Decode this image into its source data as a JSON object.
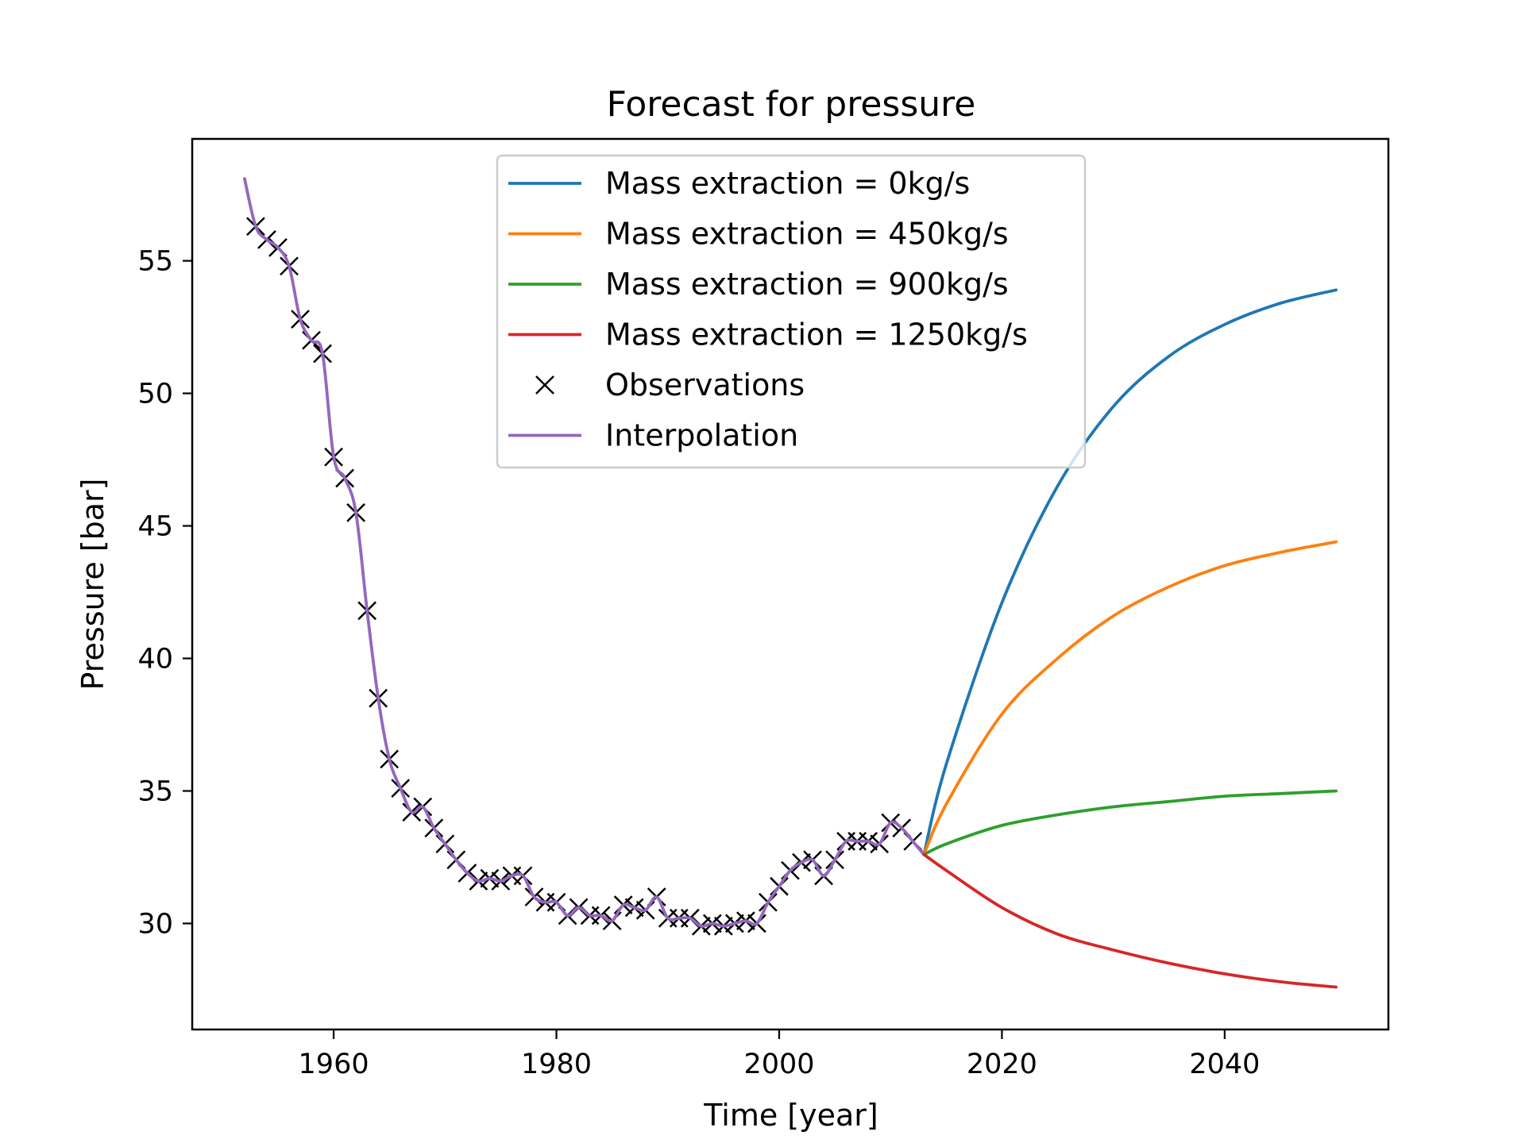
{
  "chart_data": {
    "type": "line",
    "title": "Forecast for pressure",
    "xlabel": "Time [year]",
    "ylabel": "Pressure [bar]",
    "xlim": [
      1947.3,
      2054.7
    ],
    "ylim": [
      26.0,
      59.6
    ],
    "xticks": [
      1960,
      1980,
      2000,
      2020,
      2040
    ],
    "yticks": [
      30,
      35,
      40,
      45,
      50,
      55
    ],
    "grid": false,
    "legend_position": "upper center",
    "colors": {
      "blue": "#1f77b4",
      "orange": "#ff7f0e",
      "green": "#2ca02c",
      "red": "#d62728",
      "purple": "#9467bd",
      "black": "#000000"
    },
    "legend": [
      {
        "label": "Mass extraction = 0kg/s",
        "kind": "line",
        "color": "#1f77b4"
      },
      {
        "label": "Mass extraction = 450kg/s",
        "kind": "line",
        "color": "#ff7f0e"
      },
      {
        "label": "Mass extraction = 900kg/s",
        "kind": "line",
        "color": "#2ca02c"
      },
      {
        "label": "Mass extraction = 1250kg/s",
        "kind": "line",
        "color": "#d62728"
      },
      {
        "label": "Observations",
        "kind": "marker",
        "color": "#000000"
      },
      {
        "label": "Interpolation",
        "kind": "line",
        "color": "#9467bd"
      }
    ],
    "observations": {
      "name": "Observations",
      "x": [
        1953,
        1954,
        1955,
        1956,
        1957,
        1958,
        1959,
        1960,
        1961,
        1962,
        1963,
        1964,
        1965,
        1966,
        1967,
        1968,
        1969,
        1970,
        1971,
        1972,
        1973,
        1974,
        1975,
        1976,
        1977,
        1978,
        1979,
        1980,
        1981,
        1982,
        1983,
        1984,
        1985,
        1986,
        1987,
        1988,
        1989,
        1990,
        1991,
        1992,
        1993,
        1994,
        1995,
        1996,
        1997,
        1998,
        1999,
        2000,
        2001,
        2002,
        2003,
        2004,
        2005,
        2006,
        2007,
        2008,
        2009,
        2010,
        2011,
        2012
      ],
      "y": [
        56.3,
        55.8,
        55.5,
        54.8,
        52.8,
        52.0,
        51.5,
        47.6,
        46.8,
        45.5,
        41.8,
        38.5,
        36.2,
        35.1,
        34.2,
        34.4,
        33.6,
        33.0,
        32.4,
        31.9,
        31.6,
        31.7,
        31.6,
        31.8,
        31.8,
        31.0,
        30.8,
        30.8,
        30.3,
        30.6,
        30.3,
        30.3,
        30.1,
        30.7,
        30.6,
        30.5,
        31.0,
        30.2,
        30.2,
        30.2,
        29.9,
        30.0,
        29.9,
        30.0,
        30.1,
        30.0,
        30.8,
        31.4,
        32.0,
        32.3,
        32.4,
        31.8,
        32.4,
        33.1,
        33.1,
        33.1,
        33.0,
        33.8,
        33.6,
        33.1
      ]
    },
    "interpolation": {
      "name": "Interpolation",
      "x": [
        1952,
        1953,
        1954,
        1955,
        1956,
        1957,
        1958,
        1959,
        1960,
        1961,
        1962,
        1963,
        1964,
        1965,
        1966,
        1967,
        1968,
        1969,
        1970,
        1971,
        1972,
        1973,
        1974,
        1975,
        1976,
        1977,
        1978,
        1979,
        1980,
        1981,
        1982,
        1983,
        1984,
        1985,
        1986,
        1987,
        1988,
        1989,
        1990,
        1991,
        1992,
        1993,
        1994,
        1995,
        1996,
        1997,
        1998,
        1999,
        2000,
        2001,
        2002,
        2003,
        2004,
        2005,
        2006,
        2007,
        2008,
        2009,
        2010,
        2011,
        2012,
        2013
      ],
      "y": [
        58.1,
        56.3,
        55.8,
        55.5,
        54.8,
        52.8,
        52.0,
        51.5,
        47.6,
        46.8,
        45.5,
        41.8,
        38.5,
        36.2,
        35.1,
        34.2,
        34.4,
        33.6,
        33.0,
        32.4,
        31.9,
        31.6,
        31.7,
        31.6,
        31.8,
        31.8,
        31.0,
        30.8,
        30.8,
        30.3,
        30.6,
        30.3,
        30.3,
        30.1,
        30.7,
        30.6,
        30.5,
        31.0,
        30.2,
        30.2,
        30.2,
        29.9,
        30.0,
        29.9,
        30.0,
        30.1,
        30.0,
        30.8,
        31.4,
        32.0,
        32.3,
        32.4,
        31.8,
        32.4,
        33.1,
        33.1,
        33.1,
        33.0,
        33.8,
        33.6,
        33.1,
        32.6
      ]
    },
    "forecasts": [
      {
        "name": "Mass extraction = 0kg/s",
        "color": "#1f77b4",
        "x": [
          2013,
          2015,
          2020,
          2025,
          2030,
          2035,
          2040,
          2045,
          2050
        ],
        "y": [
          32.6,
          36.0,
          42.1,
          46.5,
          49.5,
          51.4,
          52.6,
          53.4,
          53.9
        ]
      },
      {
        "name": "Mass extraction = 450kg/s",
        "color": "#ff7f0e",
        "x": [
          2013,
          2015,
          2020,
          2025,
          2030,
          2035,
          2040,
          2045,
          2050
        ],
        "y": [
          32.6,
          34.5,
          37.9,
          40.0,
          41.6,
          42.7,
          43.5,
          44.0,
          44.4
        ]
      },
      {
        "name": "Mass extraction = 900kg/s",
        "color": "#2ca02c",
        "x": [
          2013,
          2015,
          2020,
          2025,
          2030,
          2035,
          2040,
          2045,
          2050
        ],
        "y": [
          32.6,
          33.0,
          33.7,
          34.1,
          34.4,
          34.6,
          34.8,
          34.9,
          35.0
        ]
      },
      {
        "name": "Mass extraction = 1250kg/s",
        "color": "#d62728",
        "x": [
          2013,
          2015,
          2020,
          2025,
          2030,
          2035,
          2040,
          2045,
          2050
        ],
        "y": [
          32.6,
          32.0,
          30.6,
          29.6,
          29.0,
          28.5,
          28.1,
          27.8,
          27.6
        ]
      }
    ]
  }
}
